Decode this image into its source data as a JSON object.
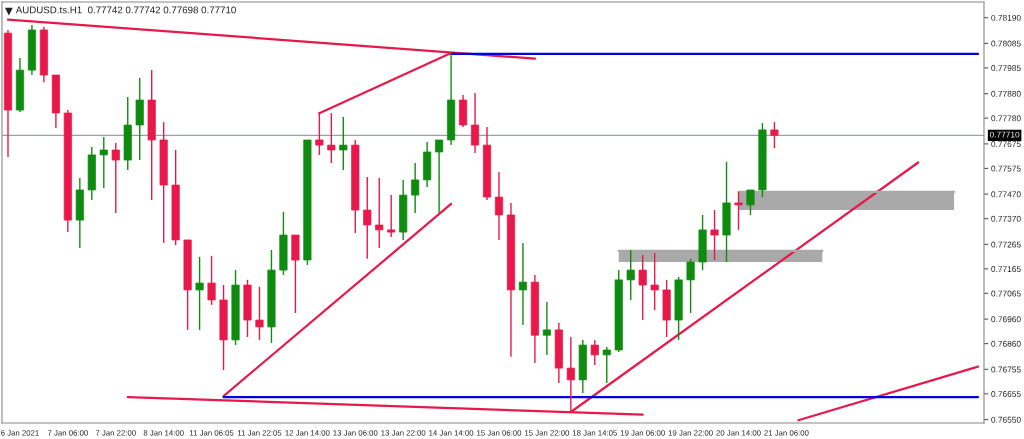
{
  "chart_data": {
    "type": "candlestick",
    "title": "AUDUSD.ts.H1  0.77742 0.77742 0.77698 0.77710",
    "categories": [
      null,
      "6 Jan 2021",
      null,
      null,
      null,
      "7 Jan 06:00",
      null,
      null,
      null,
      "7 Jan 22:00",
      null,
      null,
      null,
      "8 Jan 14:00",
      null,
      null,
      null,
      "11 Jan 06:05",
      null,
      null,
      null,
      "11 Jan 22:05",
      null,
      null,
      null,
      "12 Jan 14:00",
      null,
      null,
      null,
      "13 Jan 06:00",
      null,
      null,
      null,
      "13 Jan 22:00",
      null,
      null,
      null,
      "14 Jan 14:00",
      null,
      null,
      null,
      "15 Jan 06:00",
      null,
      null,
      null,
      "15 Jan 22:00",
      null,
      null,
      null,
      "18 Jan 14:05",
      null,
      null,
      null,
      "19 Jan 06:00",
      null,
      null,
      null,
      "19 Jan 22:00",
      null,
      null,
      null,
      "20 Jan 14:00",
      null,
      null,
      null,
      "21 Jan 06:00",
      null,
      null,
      null,
      null,
      null,
      null,
      null,
      null,
      null,
      null,
      null,
      null,
      null,
      null,
      null,
      null
    ],
    "ohlc": [
      [
        0.78127,
        0.7814,
        0.77621,
        0.77813
      ],
      [
        0.77813,
        0.78025,
        0.77805,
        0.77976
      ],
      [
        0.77976,
        0.7816,
        0.77956,
        0.7814
      ],
      [
        0.7814,
        0.78152,
        0.77927,
        0.77956
      ],
      [
        0.77956,
        0.77956,
        0.7774,
        0.77801
      ],
      [
        0.77801,
        0.77813,
        0.77315,
        0.77364
      ],
      [
        0.77364,
        0.77536,
        0.7725,
        0.77487
      ],
      [
        0.77487,
        0.77662,
        0.77446,
        0.7763
      ],
      [
        0.7763,
        0.77703,
        0.77495,
        0.7765
      ],
      [
        0.7765,
        0.77679,
        0.77393,
        0.77609
      ],
      [
        0.77609,
        0.77866,
        0.77568,
        0.77752
      ],
      [
        0.77752,
        0.77944,
        0.77609,
        0.77854
      ],
      [
        0.77854,
        0.77976,
        0.77446,
        0.77691
      ],
      [
        0.77691,
        0.77764,
        0.77271,
        0.77507
      ],
      [
        0.77507,
        0.7765,
        0.77262,
        0.77283
      ],
      [
        0.77283,
        0.77283,
        0.76916,
        0.77079
      ],
      [
        0.77079,
        0.77214,
        0.76916,
        0.77107
      ],
      [
        0.77107,
        0.77218,
        0.77018,
        0.77038
      ],
      [
        0.77038,
        0.77099,
        0.76752,
        0.76875
      ],
      [
        0.76875,
        0.7716,
        0.76854,
        0.77099
      ],
      [
        0.77099,
        0.7712,
        0.76887,
        0.76956
      ],
      [
        0.76956,
        0.77092,
        0.76875,
        0.76928
      ],
      [
        0.76928,
        0.77242,
        0.76863,
        0.7716
      ],
      [
        0.7716,
        0.77397,
        0.7714,
        0.77303
      ],
      [
        0.77303,
        0.77303,
        0.76985,
        0.77201
      ],
      [
        0.77201,
        0.77691,
        0.77181,
        0.77691
      ],
      [
        0.77691,
        0.77805,
        0.7763,
        0.7767
      ],
      [
        0.7767,
        0.77801,
        0.77597,
        0.7765
      ],
      [
        0.7765,
        0.77785,
        0.77568,
        0.7767
      ],
      [
        0.7767,
        0.77691,
        0.77311,
        0.77405
      ],
      [
        0.77405,
        0.7754,
        0.77206,
        0.77344
      ],
      [
        0.77344,
        0.77536,
        0.7725,
        0.77324
      ],
      [
        0.77324,
        0.77466,
        0.77295,
        0.77315
      ],
      [
        0.77315,
        0.77528,
        0.77283,
        0.77466
      ],
      [
        0.77466,
        0.77597,
        0.77393,
        0.77528
      ],
      [
        0.77528,
        0.77683,
        0.77499,
        0.77642
      ],
      [
        0.77642,
        0.77691,
        0.77393,
        0.77691
      ],
      [
        0.77691,
        0.78046,
        0.7767,
        0.77854
      ],
      [
        0.77854,
        0.77874,
        0.77744,
        0.77752
      ],
      [
        0.77752,
        0.77883,
        0.77638,
        0.7767
      ],
      [
        0.7767,
        0.77744,
        0.77446,
        0.77458
      ],
      [
        0.77458,
        0.7756,
        0.77283,
        0.77385
      ],
      [
        0.77385,
        0.77434,
        0.76806,
        0.77079
      ],
      [
        0.77079,
        0.77271,
        0.76936,
        0.77111
      ],
      [
        0.77111,
        0.7714,
        0.76781,
        0.76894
      ],
      [
        0.76894,
        0.7703,
        0.76814,
        0.76916
      ],
      [
        0.76916,
        0.76944,
        0.76699,
        0.7676
      ],
      [
        0.7676,
        0.76887,
        0.76581,
        0.76712
      ],
      [
        0.76712,
        0.76875,
        0.76658,
        0.76854
      ],
      [
        0.76854,
        0.76875,
        0.76773,
        0.76814
      ],
      [
        0.76814,
        0.76846,
        0.76699,
        0.76834
      ],
      [
        0.76834,
        0.7716,
        0.76826,
        0.7712
      ],
      [
        0.7712,
        0.77242,
        0.77038,
        0.7716
      ],
      [
        0.7716,
        0.77222,
        0.76956,
        0.77099
      ],
      [
        0.77099,
        0.7723,
        0.76997,
        0.77079
      ],
      [
        0.77079,
        0.7712,
        0.76887,
        0.76956
      ],
      [
        0.76956,
        0.77132,
        0.76875,
        0.7712
      ],
      [
        0.7712,
        0.77206,
        0.76985,
        0.77193
      ],
      [
        0.77193,
        0.77385,
        0.7716,
        0.77324
      ],
      [
        0.77324,
        0.77405,
        0.77201,
        0.77303
      ],
      [
        0.77303,
        0.77601,
        0.77193,
        0.77434
      ],
      [
        0.77434,
        0.77479,
        0.77324,
        0.77426
      ],
      [
        0.77426,
        0.77487,
        0.77385,
        0.77487
      ],
      [
        0.77487,
        0.7776,
        0.77458,
        0.77732
      ],
      [
        0.77732,
        0.77764,
        0.77658,
        0.7771
      ],
      null,
      null,
      null,
      null,
      null,
      null,
      null,
      null,
      null,
      null,
      null,
      null,
      null,
      null,
      null,
      null,
      null
    ],
    "colors": [
      "#e8194a",
      "#0f8c0f",
      "#0f8c0f",
      "#e8194a",
      "#e8194a",
      "#e8194a",
      "#0f8c0f",
      "#0f8c0f",
      "#0f8c0f",
      "#e8194a",
      "#0f8c0f",
      "#0f8c0f",
      "#e8194a",
      "#e8194a",
      "#e8194a",
      "#e8194a",
      "#0f8c0f",
      "#e8194a",
      "#e8194a",
      "#0f8c0f",
      "#e8194a",
      "#e8194a",
      "#0f8c0f",
      "#0f8c0f",
      "#e8194a",
      "#0f8c0f",
      "#e8194a",
      "#e8194a",
      "#0f8c0f",
      "#e8194a",
      "#e8194a",
      "#e8194a",
      "#e8194a",
      "#0f8c0f",
      "#0f8c0f",
      "#0f8c0f",
      "#0f8c0f",
      "#0f8c0f",
      "#e8194a",
      "#e8194a",
      "#e8194a",
      "#e8194a",
      "#e8194a",
      "#0f8c0f",
      "#e8194a",
      "#0f8c0f",
      "#e8194a",
      "#e8194a",
      "#0f8c0f",
      "#e8194a",
      "#0f8c0f",
      "#0f8c0f",
      "#0f8c0f",
      "#e8194a",
      "#e8194a",
      "#e8194a",
      "#0f8c0f",
      "#0f8c0f",
      "#0f8c0f",
      "#e8194a",
      "#0f8c0f",
      "#e8194a",
      "#0f8c0f",
      "#0f8c0f",
      "#e8194a",
      null,
      null,
      null,
      null,
      null,
      null,
      null,
      null,
      null,
      null,
      null,
      null,
      null,
      null,
      null,
      null,
      null
    ],
    "series": [
      {
        "type": "line",
        "color": "#e8194a",
        "values": [
          0.78182,
          null,
          null,
          null,
          null,
          null,
          null,
          null,
          null,
          null,
          null,
          null,
          null,
          null,
          null,
          null,
          null,
          null,
          null,
          null,
          null,
          null,
          null,
          null,
          null,
          null,
          null,
          null,
          null,
          null,
          null,
          null,
          null,
          null,
          null,
          null,
          null,
          null,
          null,
          null,
          null,
          null,
          null,
          null,
          0.78023,
          null,
          null,
          null,
          null,
          null,
          null,
          null,
          null,
          null,
          null,
          null,
          null,
          null,
          null,
          null,
          null,
          null,
          null,
          null,
          null,
          null,
          null,
          null,
          null,
          null,
          null,
          null,
          null,
          null,
          null,
          null,
          null,
          null,
          null,
          null,
          null,
          null
        ]
      },
      {
        "type": "line",
        "color": "#e8194a",
        "values": [
          null,
          null,
          null,
          null,
          null,
          null,
          null,
          null,
          null,
          null,
          null,
          null,
          null,
          null,
          null,
          null,
          null,
          null,
          null,
          null,
          null,
          null,
          null,
          null,
          null,
          null,
          0.778,
          null,
          null,
          null,
          null,
          null,
          null,
          null,
          null,
          null,
          null,
          0.78046,
          null,
          null,
          null,
          null,
          null,
          null,
          null,
          null,
          null,
          null,
          null,
          null,
          null,
          null,
          null,
          null,
          null,
          null,
          null,
          null,
          null,
          null,
          null,
          null,
          null,
          null,
          null,
          null,
          null,
          null,
          null,
          null,
          null,
          null,
          null,
          null,
          null,
          null,
          null,
          null,
          null,
          null,
          null,
          null
        ]
      },
      {
        "type": "line",
        "color": "#e8194a",
        "values": [
          null,
          null,
          null,
          null,
          null,
          null,
          null,
          null,
          null,
          null,
          null,
          null,
          null,
          null,
          null,
          null,
          null,
          null,
          0.76646,
          null,
          null,
          null,
          null,
          null,
          null,
          null,
          null,
          null,
          null,
          null,
          null,
          null,
          null,
          null,
          null,
          null,
          null,
          0.7743,
          null,
          null,
          null,
          null,
          null,
          null,
          null,
          null,
          null,
          null,
          null,
          null,
          null,
          null,
          null,
          null,
          null,
          null,
          null,
          null,
          null,
          null,
          null,
          null,
          null,
          null,
          null,
          null,
          null,
          null,
          null,
          null,
          null,
          null,
          null,
          null,
          null,
          null,
          null,
          null,
          null,
          null,
          null,
          null
        ]
      },
      {
        "type": "line",
        "color": "#e8194a",
        "values": [
          null,
          null,
          null,
          null,
          null,
          null,
          null,
          null,
          null,
          null,
          0.76642,
          null,
          null,
          null,
          null,
          null,
          null,
          null,
          null,
          null,
          null,
          null,
          null,
          null,
          null,
          null,
          null,
          null,
          null,
          null,
          null,
          null,
          null,
          null,
          null,
          null,
          null,
          null,
          null,
          null,
          null,
          null,
          null,
          null,
          null,
          null,
          null,
          null,
          null,
          null,
          null,
          null,
          null,
          0.7657,
          null,
          null,
          null,
          null,
          null,
          null,
          null,
          null,
          null,
          null,
          null,
          null,
          null,
          null,
          null,
          null,
          null,
          null,
          null,
          null,
          null,
          null,
          null,
          null,
          null,
          null,
          null,
          null
        ]
      },
      {
        "type": "line",
        "color": "#e8194a",
        "values": [
          null,
          null,
          null,
          null,
          null,
          null,
          null,
          null,
          null,
          null,
          null,
          null,
          null,
          null,
          null,
          null,
          null,
          null,
          null,
          null,
          null,
          null,
          null,
          null,
          null,
          null,
          null,
          null,
          null,
          null,
          null,
          null,
          null,
          null,
          null,
          null,
          null,
          null,
          null,
          null,
          null,
          null,
          null,
          null,
          null,
          null,
          null,
          0.76581,
          null,
          null,
          null,
          null,
          null,
          null,
          null,
          null,
          null,
          null,
          null,
          null,
          null,
          null,
          null,
          null,
          null,
          null,
          null,
          null,
          null,
          null,
          null,
          null,
          null,
          null,
          null,
          null,
          0.77599,
          null,
          null,
          null,
          null,
          null
        ]
      },
      {
        "type": "line",
        "color": "#e8194a",
        "values": [
          null,
          null,
          null,
          null,
          null,
          null,
          null,
          null,
          null,
          null,
          null,
          null,
          null,
          null,
          null,
          null,
          null,
          null,
          null,
          null,
          null,
          null,
          null,
          null,
          null,
          null,
          null,
          null,
          null,
          null,
          null,
          null,
          null,
          null,
          null,
          null,
          null,
          null,
          null,
          null,
          null,
          null,
          null,
          null,
          null,
          null,
          null,
          null,
          null,
          null,
          null,
          null,
          null,
          null,
          null,
          null,
          null,
          null,
          null,
          null,
          null,
          null,
          null,
          null,
          null,
          null,
          0.76547,
          null,
          null,
          null,
          null,
          null,
          null,
          null,
          null,
          null,
          null,
          null,
          null,
          null,
          null,
          0.76766
        ]
      },
      {
        "type": "line",
        "color": "#0000e0",
        "values": [
          null,
          null,
          null,
          null,
          null,
          null,
          null,
          null,
          null,
          null,
          null,
          null,
          null,
          null,
          null,
          null,
          null,
          null,
          null,
          null,
          null,
          null,
          null,
          null,
          null,
          null,
          null,
          null,
          null,
          null,
          null,
          null,
          null,
          null,
          null,
          null,
          null,
          0.78042,
          null,
          null,
          null,
          null,
          null,
          null,
          null,
          null,
          null,
          null,
          null,
          null,
          null,
          null,
          null,
          null,
          null,
          null,
          null,
          null,
          null,
          null,
          null,
          null,
          null,
          null,
          null,
          null,
          null,
          null,
          null,
          null,
          null,
          null,
          null,
          null,
          null,
          null,
          null,
          null,
          null,
          null,
          null,
          0.78042
        ]
      },
      {
        "type": "line",
        "color": "#0000e0",
        "values": [
          null,
          null,
          null,
          null,
          null,
          null,
          null,
          null,
          null,
          null,
          null,
          null,
          null,
          null,
          null,
          null,
          null,
          null,
          0.76642,
          null,
          null,
          null,
          null,
          null,
          null,
          null,
          null,
          null,
          null,
          null,
          null,
          null,
          null,
          null,
          null,
          null,
          null,
          null,
          null,
          null,
          null,
          null,
          null,
          null,
          null,
          null,
          null,
          null,
          null,
          null,
          null,
          null,
          null,
          null,
          null,
          null,
          null,
          null,
          null,
          null,
          null,
          null,
          null,
          null,
          null,
          null,
          null,
          null,
          null,
          null,
          null,
          null,
          null,
          null,
          null,
          null,
          null,
          null,
          null,
          null,
          null,
          0.76642
        ]
      },
      {
        "type": "line",
        "color": "#a9a9a9",
        "values": [
          null,
          null,
          null,
          null,
          null,
          null,
          null,
          null,
          null,
          null,
          null,
          null,
          null,
          null,
          null,
          null,
          null,
          null,
          null,
          null,
          null,
          null,
          null,
          null,
          null,
          null,
          null,
          null,
          null,
          null,
          null,
          null,
          null,
          null,
          null,
          null,
          null,
          null,
          null,
          null,
          null,
          null,
          null,
          null,
          null,
          null,
          null,
          null,
          null,
          null,
          null,
          0.77238,
          null,
          null,
          null,
          null,
          null,
          null,
          null,
          null,
          null,
          null,
          null,
          null,
          null,
          null,
          null,
          null,
          0.77238,
          null,
          null,
          null,
          null,
          null,
          null,
          null,
          null,
          null,
          null,
          null,
          null,
          null
        ],
        "upper": [
          null,
          null,
          null,
          null,
          null,
          null,
          null,
          null,
          null,
          null,
          null,
          null,
          null,
          null,
          null,
          null,
          null,
          null,
          null,
          null,
          null,
          null,
          null,
          null,
          null,
          null,
          null,
          null,
          null,
          null,
          null,
          null,
          null,
          null,
          null,
          null,
          null,
          null,
          null,
          null,
          null,
          null,
          null,
          null,
          null,
          null,
          null,
          null,
          null,
          null,
          null,
          0.77238,
          null,
          null,
          null,
          null,
          null,
          null,
          null,
          null,
          null,
          null,
          null,
          null,
          null,
          null,
          null,
          null,
          0.77238,
          null,
          null,
          null,
          null,
          null,
          null,
          null,
          null,
          null,
          null,
          null,
          null,
          null
        ],
        "lower": [
          null,
          null,
          null,
          null,
          null,
          null,
          null,
          null,
          null,
          null,
          null,
          null,
          null,
          null,
          null,
          null,
          null,
          null,
          null,
          null,
          null,
          null,
          null,
          null,
          null,
          null,
          null,
          null,
          null,
          null,
          null,
          null,
          null,
          null,
          null,
          null,
          null,
          null,
          null,
          null,
          null,
          null,
          null,
          null,
          null,
          null,
          null,
          null,
          null,
          null,
          null,
          0.77193,
          null,
          null,
          null,
          null,
          null,
          null,
          null,
          null,
          null,
          null,
          null,
          null,
          null,
          null,
          null,
          null,
          0.77193,
          null,
          null,
          null,
          null,
          null,
          null,
          null,
          null,
          null,
          null,
          null,
          null,
          null
        ]
      },
      {
        "type": "line",
        "color": "#a9a9a9",
        "values": [
          null,
          null,
          null,
          null,
          null,
          null,
          null,
          null,
          null,
          null,
          null,
          null,
          null,
          null,
          null,
          null,
          null,
          null,
          null,
          null,
          null,
          null,
          null,
          null,
          null,
          null,
          null,
          null,
          null,
          null,
          null,
          null,
          null,
          null,
          null,
          null,
          null,
          null,
          null,
          null,
          null,
          null,
          null,
          null,
          null,
          null,
          null,
          null,
          null,
          null,
          null,
          null,
          null,
          null,
          null,
          null,
          null,
          null,
          null,
          null,
          null,
          0.77479,
          null,
          null,
          null,
          null,
          null,
          null,
          null,
          null,
          null,
          null,
          null,
          null,
          null,
          null,
          null,
          null,
          null,
          0.77479,
          null,
          null
        ],
        "upper": [
          null,
          null,
          null,
          null,
          null,
          null,
          null,
          null,
          null,
          null,
          null,
          null,
          null,
          null,
          null,
          null,
          null,
          null,
          null,
          null,
          null,
          null,
          null,
          null,
          null,
          null,
          null,
          null,
          null,
          null,
          null,
          null,
          null,
          null,
          null,
          null,
          null,
          null,
          null,
          null,
          null,
          null,
          null,
          null,
          null,
          null,
          null,
          null,
          null,
          null,
          null,
          null,
          null,
          null,
          null,
          null,
          null,
          null,
          null,
          null,
          null,
          0.77479,
          null,
          null,
          null,
          null,
          null,
          null,
          null,
          null,
          null,
          null,
          null,
          null,
          null,
          null,
          null,
          null,
          null,
          0.77479,
          null,
          null
        ],
        "lower": [
          null,
          null,
          null,
          null,
          null,
          null,
          null,
          null,
          null,
          null,
          null,
          null,
          null,
          null,
          null,
          null,
          null,
          null,
          null,
          null,
          null,
          null,
          null,
          null,
          null,
          null,
          null,
          null,
          null,
          null,
          null,
          null,
          null,
          null,
          null,
          null,
          null,
          null,
          null,
          null,
          null,
          null,
          null,
          null,
          null,
          null,
          null,
          null,
          null,
          null,
          null,
          null,
          null,
          null,
          null,
          null,
          null,
          null,
          null,
          null,
          null,
          0.77405,
          null,
          null,
          null,
          null,
          null,
          null,
          null,
          null,
          null,
          null,
          null,
          null,
          null,
          null,
          null,
          null,
          null,
          0.77405,
          null,
          null
        ]
      }
    ],
    "ref_lines": [
      {
        "axis": "y",
        "value": 0.7771,
        "label": "0.77710",
        "color": "#9aa0a6"
      }
    ],
    "ylim": [
      0.76536,
      0.78254
    ],
    "yticks": [
      {
        "value": 0.7819,
        "label": "0.78190"
      },
      0.78085,
      0.77985,
      {
        "value": 0.7788,
        "label": "0.77880"
      },
      {
        "value": 0.7778,
        "label": "0.77780"
      },
      0.77675,
      0.77575,
      {
        "value": 0.7747,
        "label": "0.77470"
      },
      {
        "value": 0.7737,
        "label": "0.77370"
      },
      0.77265,
      0.77165,
      0.77065,
      {
        "value": 0.7696,
        "label": "0.76960"
      },
      {
        "value": 0.7686,
        "label": "0.76860"
      },
      0.76755,
      0.76655,
      {
        "value": 0.7655,
        "label": "0.76550"
      }
    ],
    "grid": false
  }
}
